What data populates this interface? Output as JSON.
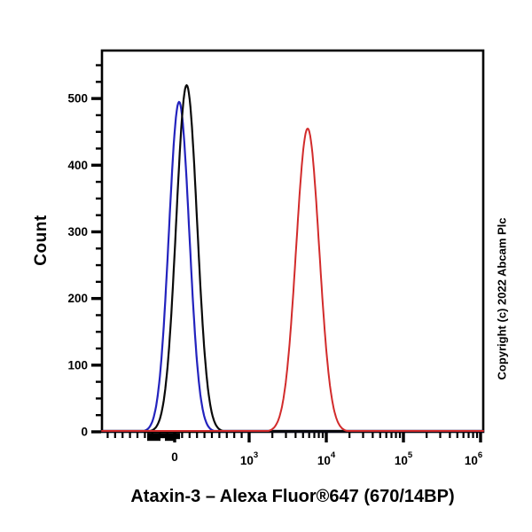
{
  "figure": {
    "title": "Ataxin-3 – Alexa Fluor®647 (670/14BP)",
    "y_axis_label": "Count",
    "copyright": "Copyright (c) 2022 Abcam Plc"
  },
  "chart_data": {
    "type": "line",
    "subtype": "flow-cytometry-histogram-overlay",
    "title": "Ataxin-3 – Alexa Fluor®647 (670/14BP)",
    "xlabel": "Ataxin-3 – Alexa Fluor®647 (670/14BP)",
    "ylabel": "Count",
    "grid": false,
    "legend": false,
    "x_axis": {
      "scale": "biexponential",
      "major_ticks": [
        {
          "base": "0",
          "exp": "",
          "value": 0,
          "frac": 0.1907
        },
        {
          "base": "10",
          "exp": "3",
          "value": 1000,
          "frac": 0.386
        },
        {
          "base": "10",
          "exp": "4",
          "value": 10000,
          "frac": 0.5884
        },
        {
          "base": "10",
          "exp": "5",
          "value": 100000,
          "frac": 0.7907
        },
        {
          "base": "10",
          "exp": "6",
          "value": 1000000,
          "frac": 0.993
        }
      ],
      "linear_region": {
        "min": -970,
        "max": 1000,
        "tick_step": 100
      },
      "log_decades": [
        3,
        4,
        5,
        6
      ]
    },
    "y_axis": {
      "label": "Count",
      "min": 0,
      "max": 572,
      "major_step": 100,
      "minor_step": 25,
      "major_labels": [
        "0",
        "100",
        "200",
        "300",
        "400",
        "500"
      ]
    },
    "series": [
      {
        "name": "blue-histogram",
        "color": "#2323be",
        "peak_count": 495,
        "peak_x_value": 60,
        "center_frac": 0.2023,
        "sigma_frac": 0.0267,
        "line_width": 2.2
      },
      {
        "name": "black-histogram",
        "color": "#0a0a0a",
        "peak_count": 520,
        "peak_x_value": 150,
        "center_frac": 0.2221,
        "sigma_frac": 0.0274,
        "line_width": 2.2
      },
      {
        "name": "red-histogram",
        "color": "#d22b2b",
        "peak_count": 455,
        "peak_x_value": 5500,
        "center_frac": 0.5395,
        "sigma_frac": 0.0302,
        "line_width": 2.0
      }
    ],
    "dense_tick_cluster_fracs": [
      [
        0.1186,
        0.1535,
        9
      ],
      [
        0.1535,
        0.1651,
        6
      ],
      [
        0.1651,
        0.1884,
        9
      ],
      [
        0.1884,
        0.2047,
        7
      ]
    ]
  }
}
